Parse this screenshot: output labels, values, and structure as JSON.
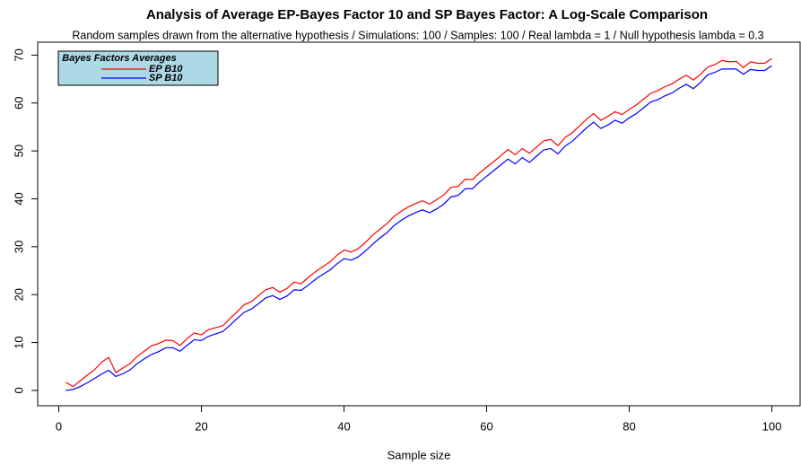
{
  "chart_data": {
    "type": "line",
    "title": "Analysis of Average EP-Bayes Factor 10 and SP Bayes Factor: A Log-Scale Comparison",
    "subtitle": "Random samples drawn from the alternative hypothesis / Simulations: 100 / Samples: 100 / Real lambda = 1 / Null hypothesis lambda = 0.3",
    "x_label": "Sample size",
    "legend_title": "Bayes Factors Averages",
    "x": [
      1,
      2,
      3,
      4,
      5,
      6,
      7,
      8,
      9,
      10,
      11,
      12,
      13,
      14,
      15,
      16,
      17,
      18,
      19,
      20,
      21,
      22,
      23,
      24,
      25,
      26,
      27,
      28,
      29,
      30,
      31,
      32,
      33,
      34,
      35,
      36,
      37,
      38,
      39,
      40,
      41,
      42,
      43,
      44,
      45,
      46,
      47,
      48,
      49,
      50,
      51,
      52,
      53,
      54,
      55,
      56,
      57,
      58,
      59,
      60,
      61,
      62,
      63,
      64,
      65,
      66,
      67,
      68,
      69,
      70,
      71,
      72,
      73,
      74,
      75,
      76,
      77,
      78,
      79,
      80,
      81,
      82,
      83,
      84,
      85,
      86,
      87,
      88,
      89,
      90,
      91,
      92,
      93,
      94,
      95,
      96,
      97,
      98,
      99,
      100
    ],
    "series": [
      {
        "name": "EP B10",
        "color": "#ff0000",
        "values": [
          1.7,
          0.8,
          2.0,
          3.2,
          4.3,
          5.9,
          6.9,
          3.7,
          4.7,
          5.6,
          7.1,
          8.2,
          9.3,
          9.8,
          10.5,
          10.4,
          9.4,
          10.8,
          12.0,
          11.6,
          12.7,
          13.1,
          13.5,
          15.0,
          16.4,
          17.9,
          18.5,
          19.8,
          21.0,
          21.5,
          20.5,
          21.3,
          22.6,
          22.3,
          23.6,
          24.8,
          25.8,
          26.8,
          28.2,
          29.3,
          28.9,
          29.6,
          30.9,
          32.4,
          33.6,
          34.8,
          36.3,
          37.4,
          38.3,
          39.0,
          39.6,
          38.9,
          39.8,
          40.8,
          42.4,
          42.6,
          44.1,
          44.0,
          45.4,
          46.6,
          47.8,
          49.0,
          50.3,
          49.2,
          50.5,
          49.5,
          50.8,
          52.1,
          52.4,
          51.1,
          52.8,
          53.8,
          55.2,
          56.6,
          57.8,
          56.4,
          57.2,
          58.2,
          57.6,
          58.7,
          59.6,
          60.8,
          62.0,
          62.6,
          63.4,
          64.0,
          65.0,
          65.8,
          64.8,
          66.0,
          67.5,
          68.0,
          68.9,
          68.6,
          68.7,
          67.4,
          68.6,
          68.3,
          68.3,
          69.3
        ]
      },
      {
        "name": "SP B10",
        "color": "#0000ff",
        "values": [
          0.0,
          0.2,
          0.8,
          1.6,
          2.5,
          3.4,
          4.2,
          2.9,
          3.5,
          4.3,
          5.6,
          6.6,
          7.5,
          8.1,
          8.9,
          8.9,
          8.2,
          9.4,
          10.6,
          10.4,
          11.3,
          11.8,
          12.3,
          13.6,
          15.0,
          16.3,
          17.0,
          18.1,
          19.3,
          19.8,
          19.0,
          19.7,
          21.0,
          20.9,
          22.0,
          23.2,
          24.2,
          25.1,
          26.4,
          27.5,
          27.2,
          27.9,
          29.1,
          30.5,
          31.8,
          32.9,
          34.4,
          35.5,
          36.4,
          37.1,
          37.7,
          37.1,
          37.9,
          38.9,
          40.4,
          40.7,
          42.1,
          42.1,
          43.5,
          44.7,
          45.9,
          47.1,
          48.3,
          47.3,
          48.6,
          47.6,
          48.9,
          50.2,
          50.5,
          49.4,
          51.0,
          52.0,
          53.4,
          54.8,
          56.0,
          54.7,
          55.4,
          56.4,
          55.8,
          56.9,
          57.8,
          59.0,
          60.2,
          60.7,
          61.5,
          62.1,
          63.1,
          63.9,
          63.0,
          64.3,
          65.9,
          66.4,
          67.1,
          67.1,
          67.1,
          66.0,
          67.0,
          66.8,
          66.8,
          67.8
        ]
      }
    ],
    "xlim": [
      -2.96,
      103.96
    ],
    "xticks": [
      0,
      20,
      40,
      60,
      80,
      100
    ],
    "ylim": [
      -3.2,
      72.7
    ],
    "yticks": [
      0,
      10,
      20,
      30,
      40,
      50,
      60,
      70
    ],
    "legend_fill": "#add8e6"
  }
}
